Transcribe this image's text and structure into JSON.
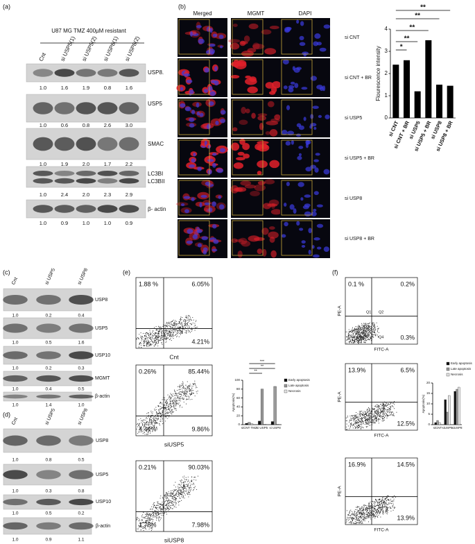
{
  "panel_a": {
    "label": "(a)",
    "title": "U87 MG TMZ 400µM resistant",
    "columns": [
      "Cnt",
      "si USP5(1)",
      "si USP5(2)",
      "si USP8(1)",
      "si USP8(2)"
    ],
    "rows": [
      {
        "names": [
          "USP8."
        ],
        "values": [
          "1.0",
          "1.6",
          "1.9",
          "0.8",
          "1.6"
        ]
      },
      {
        "names": [
          "USP5"
        ],
        "values": [
          "1.0",
          "0.6",
          "0.8",
          "2.6",
          "3.0"
        ]
      },
      {
        "names": [
          "SMAC"
        ],
        "values": [
          "1.0",
          "1.9",
          "2.0",
          "1.7",
          "2.2"
        ]
      },
      {
        "names": [
          "LC3BI",
          "LC3BII"
        ],
        "values": [
          "1.0",
          "2.4",
          "2.0",
          "2.3",
          "2.9"
        ]
      },
      {
        "names": [
          "β- actin"
        ],
        "values": [
          "1.0",
          "0.9",
          "1.0",
          "1.0",
          "0.9"
        ]
      }
    ]
  },
  "panel_b": {
    "label": "(b)",
    "headers": [
      "Merged",
      "MGMT",
      "DAPI"
    ],
    "rows": [
      "si CNT",
      "si CNT + BR",
      "si USP5",
      "si USP5 + BR",
      "si USP8",
      "si USP8 + BR"
    ],
    "chart": {
      "type": "bar",
      "y_label": "Flourescence intensity",
      "categories": [
        "si CNT",
        "si CNT + BR",
        "si USP5",
        "si USP5 + BR",
        "si USP8",
        "si USP8 + BR"
      ],
      "values": [
        2.4,
        2.6,
        1.2,
        3.5,
        1.5,
        1.45
      ],
      "color": "#000000",
      "ylim": [
        0,
        4
      ],
      "yticks": [
        0,
        1,
        2,
        3,
        4
      ],
      "annotations": [
        "*",
        "**",
        "**",
        "**",
        "**"
      ]
    }
  },
  "panel_c": {
    "label": "(c)",
    "columns": [
      "Cnt",
      "si USP5",
      "si USP8"
    ],
    "rows": [
      {
        "names": [
          "USP8"
        ],
        "values": [
          "1.0",
          "0.2",
          "0.4"
        ]
      },
      {
        "names": [
          "USP5"
        ],
        "values": [
          "1.0",
          "0.5",
          "1.6"
        ]
      },
      {
        "names": [
          "USP10"
        ],
        "values": [
          "1.0",
          "0.2",
          "0.3"
        ]
      },
      {
        "names": [
          "MGMT"
        ],
        "values": [
          "1.0",
          "0.4",
          "0.5"
        ]
      },
      {
        "names": [
          "β-actin"
        ],
        "values": [
          "1.0",
          "1.4",
          "1.0"
        ]
      }
    ]
  },
  "panel_d": {
    "label": "(d)",
    "columns": [
      "Cnt",
      "si USP5",
      "si USP8"
    ],
    "rows": [
      {
        "names": [
          "USP8"
        ],
        "values": [
          "1.0",
          "0.8",
          "0.5"
        ]
      },
      {
        "names": [
          "USP5"
        ],
        "values": [
          "1.0",
          "0.3",
          "0.8"
        ]
      },
      {
        "names": [
          "USP10"
        ],
        "values": [
          "1.0",
          "0.5",
          "0.2"
        ]
      },
      {
        "names": [
          "β-actin"
        ],
        "values": [
          "1.0",
          "0.9",
          "1.1"
        ]
      }
    ]
  },
  "panel_e": {
    "label": "(e)",
    "plots": [
      {
        "name": "Cnt",
        "tl": "1.88 %",
        "tr": "6.05%",
        "br": "4.21%"
      },
      {
        "name": "siUSP5",
        "tl": "0.26%",
        "tr": "85.44%",
        "bl": "4.44%",
        "br": "9.86%"
      },
      {
        "name": "siUSP8",
        "tl": "0.21%",
        "tr": "90.03%",
        "bl": "1.78%",
        "br": "7.98%"
      }
    ],
    "chart": {
      "type": "bar",
      "y_label": "Apoptosis(%)",
      "categories": [
        "siCNT TMZ",
        "si USP5",
        "si USP8"
      ],
      "series": [
        {
          "name": "Early apoptosis",
          "color": "#111111",
          "values": [
            3,
            8,
            7
          ]
        },
        {
          "name": "Late apoptosis",
          "color": "#9a9a9a",
          "values": [
            5,
            80,
            86
          ]
        },
        {
          "name": "Necrosis",
          "color": "#e6e6e6",
          "values": [
            2,
            1,
            1
          ]
        }
      ],
      "ylim": [
        0,
        100
      ],
      "yticks": [
        0,
        20,
        40,
        60,
        80,
        100
      ],
      "annotations": [
        "**",
        "**",
        "***"
      ]
    }
  },
  "panel_f": {
    "label": "(f)",
    "x_label": "FITC-A",
    "y_label": "PE-A",
    "gates": [
      "Q1",
      "Q2",
      "Q4"
    ],
    "plots": [
      {
        "tl": "0.1 %",
        "tr": "0.2%",
        "br": "0.3%"
      },
      {
        "tl": "13.9%",
        "tr": "6.5%",
        "br": "12.5%"
      },
      {
        "tl": "16.9%",
        "tr": "14.5%",
        "br": "13.9%"
      }
    ],
    "chart": {
      "type": "bar",
      "y_label": "Apoptosis(%)",
      "categories": [
        "siCNT",
        "siUSP5",
        "siUSP8"
      ],
      "series": [
        {
          "name": "Early apoptosis",
          "color": "#111111",
          "values": [
            1,
            12,
            16
          ]
        },
        {
          "name": "Late apoptosis",
          "color": "#9a9a9a",
          "values": [
            2,
            6,
            17
          ]
        },
        {
          "name": "Necrosis",
          "color": "#e6e6e6",
          "values": [
            1,
            14,
            18
          ]
        }
      ],
      "ylim": [
        0,
        20
      ],
      "yticks": [
        0,
        5,
        10,
        15,
        20
      ]
    }
  }
}
